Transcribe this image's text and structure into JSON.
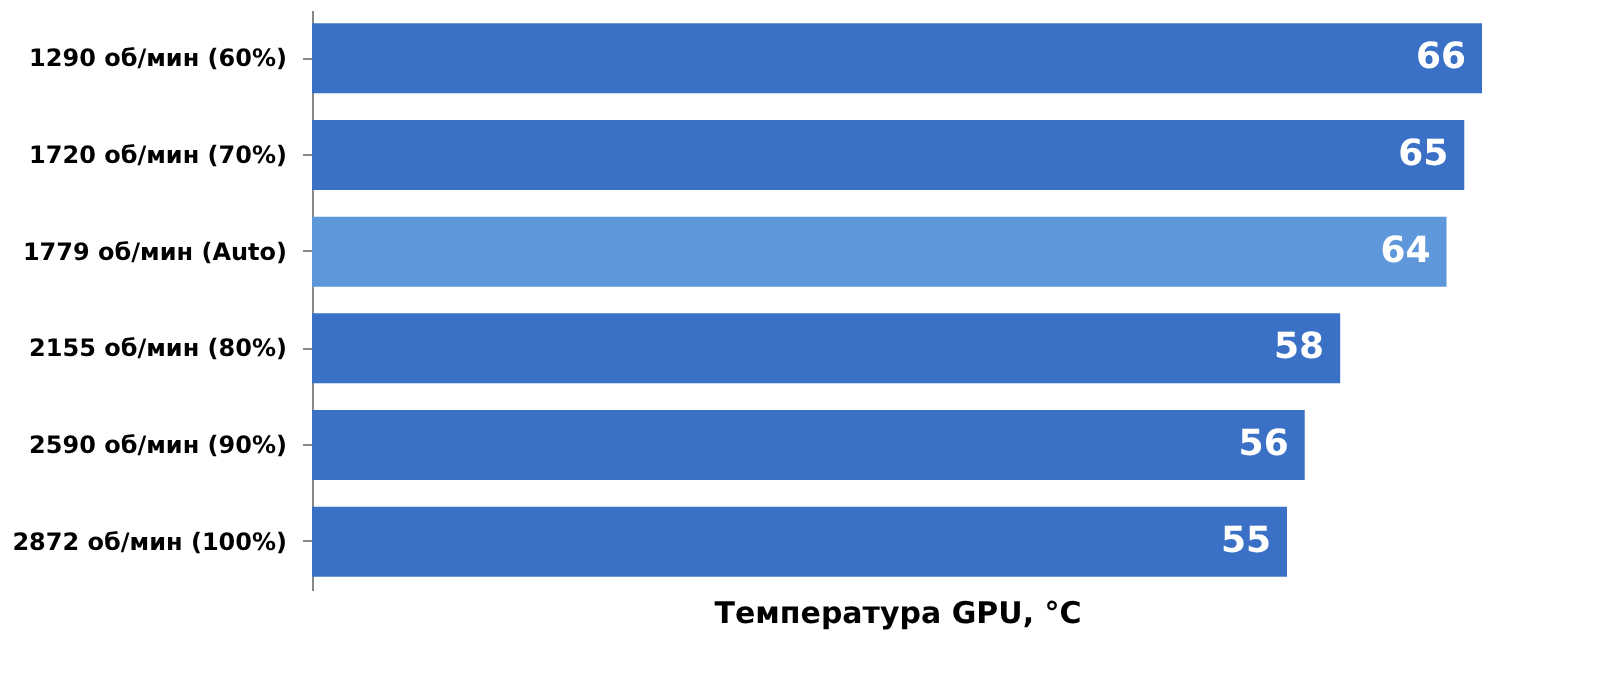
{
  "chart_data": {
    "type": "bar",
    "orientation": "horizontal",
    "xlabel": "Температура GPU, °C",
    "categories": [
      "1290 об/мин (60%)",
      "1720 об/мин (70%)",
      "1779 об/мин (Auto)",
      "2155 об/мин (80%)",
      "2590 об/мин (90%)",
      "2872 об/мин (100%)"
    ],
    "values": [
      66,
      65,
      64,
      58,
      56,
      55
    ],
    "colors": [
      "#3a70c6",
      "#3a70c6",
      "#5e97da",
      "#3a70c6",
      "#3a70c6",
      "#3a70c6"
    ],
    "data_labels": true,
    "tick_labels": "y"
  }
}
